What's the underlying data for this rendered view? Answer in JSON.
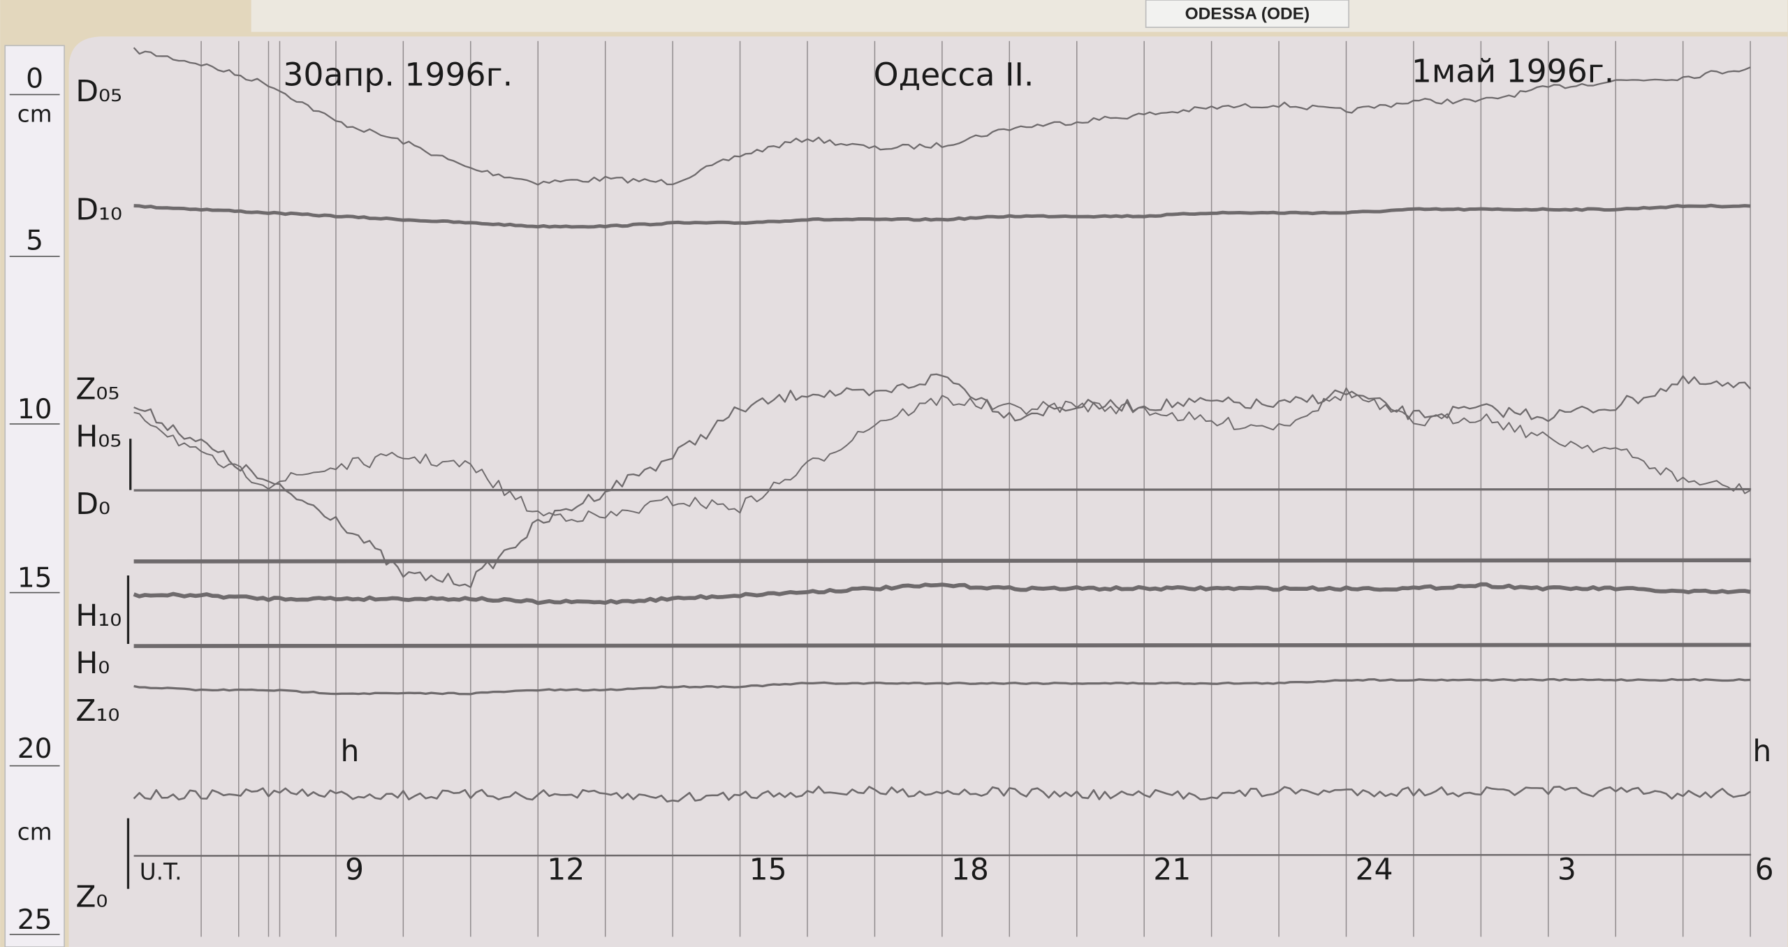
{
  "sign": {
    "label": "ODESSA (ODE)"
  },
  "ruler": {
    "labels": [
      "0",
      "cm",
      "5",
      "10",
      "15",
      "20",
      "cm",
      "25"
    ],
    "values_cm": [
      0,
      null,
      5,
      10,
      15,
      20,
      null,
      25
    ]
  },
  "chart_data": {
    "type": "line",
    "title_left": "30апр. 1996г.",
    "title_center": "Одесса II.",
    "title_right": "1май 1996г.",
    "xlabel": "U.T.",
    "ylabel": "cm",
    "ylim": [
      0,
      25
    ],
    "x": [
      "1996-04-30 06:00",
      "1996-04-30 07:00",
      "1996-04-30 08:00",
      "1996-04-30 09:00",
      "1996-04-30 10:00",
      "1996-04-30 11:00",
      "1996-04-30 12:00",
      "1996-04-30 13:00",
      "1996-04-30 14:00",
      "1996-04-30 15:00",
      "1996-04-30 16:00",
      "1996-04-30 17:00",
      "1996-04-30 18:00",
      "1996-04-30 19:00",
      "1996-04-30 20:00",
      "1996-04-30 21:00",
      "1996-04-30 22:00",
      "1996-04-30 23:00",
      "1996-05-01 00:00",
      "1996-05-01 01:00",
      "1996-05-01 02:00",
      "1996-05-01 03:00",
      "1996-05-01 04:00",
      "1996-05-01 05:00",
      "1996-05-01 06:00"
    ],
    "x_ticks": [
      {
        "label": "9",
        "t": "1996-04-30 09:00"
      },
      {
        "label": "12",
        "t": "1996-04-30 12:00"
      },
      {
        "label": "15",
        "t": "1996-04-30 15:00"
      },
      {
        "label": "18",
        "t": "1996-04-30 18:00"
      },
      {
        "label": "21",
        "t": "1996-04-30 21:00"
      },
      {
        "label": "24",
        "t": "1996-05-01 00:00"
      },
      {
        "label": "3",
        "t": "1996-05-01 03:00"
      },
      {
        "label": "6",
        "t": "1996-05-01 06:00"
      }
    ],
    "hour_marks": [
      {
        "label": "h",
        "t": "1996-04-30 09:00"
      },
      {
        "label": "h",
        "t": "1996-05-01 06:00"
      }
    ],
    "grid": "vertical hourly lines",
    "series_labels": [
      {
        "label": "D₀₅",
        "y_cm": 0.5
      },
      {
        "label": "D₁₀",
        "y_cm": 4.0
      },
      {
        "label": "Z₀₅",
        "y_cm": 9.3
      },
      {
        "label": "H₀₅",
        "y_cm": 10.7
      },
      {
        "label": "D₀",
        "y_cm": 12.7
      },
      {
        "label": "H₁₀",
        "y_cm": 16.0
      },
      {
        "label": "H₀",
        "y_cm": 17.4
      },
      {
        "label": "Z₁₀",
        "y_cm": 18.8
      },
      {
        "label": "Z₀",
        "y_cm": 24.3
      }
    ],
    "series": [
      {
        "name": "D₀₅",
        "noise": 0.08,
        "width": 1.4,
        "values": [
          -0.6,
          -0.2,
          0.4,
          1.5,
          2.1,
          2.9,
          3.3,
          3.2,
          3.3,
          2.5,
          2.0,
          2.3,
          2.2,
          1.7,
          1.5,
          1.3,
          1.1,
          1.0,
          1.2,
          0.9,
          0.9,
          0.5,
          0.3,
          0.2,
          -0.1
        ]
      },
      {
        "name": "D₁₀",
        "noise": 0.02,
        "width": 3,
        "values": [
          4.0,
          4.1,
          4.2,
          4.3,
          4.4,
          4.5,
          4.6,
          4.6,
          4.5,
          4.5,
          4.4,
          4.4,
          4.4,
          4.3,
          4.3,
          4.3,
          4.2,
          4.2,
          4.2,
          4.1,
          4.1,
          4.1,
          4.1,
          4.0,
          4.0
        ]
      },
      {
        "name": "H₀₅",
        "noise": 0.18,
        "width": 1.4,
        "values": [
          9.9,
          11.0,
          12.2,
          13.2,
          14.9,
          15.1,
          13.4,
          12.4,
          11.4,
          10.0,
          9.5,
          9.6,
          9.0,
          10.2,
          9.9,
          9.9,
          9.8,
          9.9,
          9.5,
          10.2,
          10.0,
          10.2,
          9.9,
          9.2,
          9.4
        ]
      },
      {
        "name": "Z₀₅",
        "noise": 0.18,
        "width": 1.2,
        "values": [
          10.0,
          11.4,
          12.2,
          11.7,
          11.4,
          11.7,
          13.1,
          13.2,
          12.7,
          12.9,
          11.7,
          10.4,
          9.7,
          10.0,
          9.9,
          10.0,
          10.4,
          10.5,
          9.5,
          10.4,
          10.2,
          10.9,
          11.2,
          12.1,
          12.4
        ]
      },
      {
        "name": "H₁₀",
        "noise": 0.04,
        "width": 3.5,
        "values": [
          15.5,
          15.5,
          15.6,
          15.6,
          15.6,
          15.6,
          15.7,
          15.7,
          15.6,
          15.5,
          15.4,
          15.3,
          15.2,
          15.3,
          15.3,
          15.3,
          15.3,
          15.3,
          15.3,
          15.3,
          15.2,
          15.3,
          15.3,
          15.4,
          15.4
        ]
      },
      {
        "name": "Z₁₀",
        "noise": 0.02,
        "width": 2,
        "values": [
          18.2,
          18.3,
          18.3,
          18.4,
          18.4,
          18.4,
          18.3,
          18.3,
          18.2,
          18.2,
          18.1,
          18.1,
          18.1,
          18.1,
          18.1,
          18.1,
          18.1,
          18.1,
          18.0,
          18.0,
          18.0,
          18.0,
          18.0,
          18.0,
          18.0
        ]
      },
      {
        "name": "Z",
        "noise": 0.15,
        "width": 1.6,
        "values": [
          21.4,
          21.4,
          21.3,
          21.4,
          21.4,
          21.4,
          21.4,
          21.4,
          21.5,
          21.4,
          21.3,
          21.3,
          21.3,
          21.3,
          21.4,
          21.4,
          21.4,
          21.3,
          21.3,
          21.3,
          21.3,
          21.3,
          21.3,
          21.4,
          21.3
        ]
      }
    ],
    "baselines": [
      {
        "name": "D₀",
        "y_cm": 12.4,
        "width": 2
      },
      {
        "name": "",
        "y_cm": 14.5,
        "width": 3.5
      },
      {
        "name": "H₀",
        "y_cm": 17.0,
        "width": 3.5
      },
      {
        "name": "Z₀",
        "y_cm": 23.2,
        "width": 1.5
      }
    ],
    "colors": {
      "trace": "#6e6a6c",
      "paper": "#e4dee0",
      "grid": "#8f8a8c"
    }
  }
}
